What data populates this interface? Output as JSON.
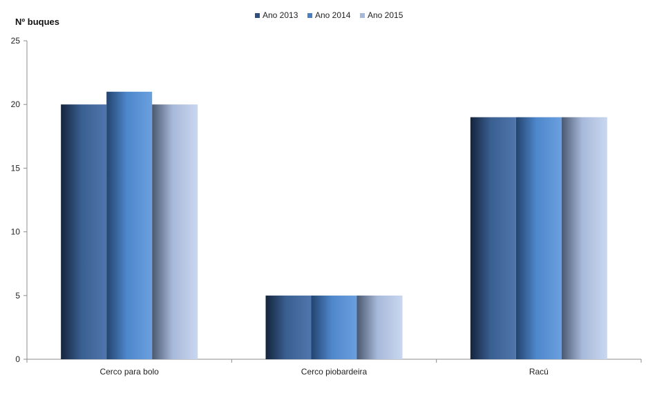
{
  "chart_data": {
    "type": "bar",
    "title": "",
    "xlabel": "",
    "ylabel": "Nº  buques",
    "categories": [
      "Cerco para bolo",
      "Cerco piobardeira",
      "Racú"
    ],
    "series": [
      {
        "name": "Ano 2013",
        "values": [
          20,
          5,
          19
        ],
        "color": "#2f4f7f"
      },
      {
        "name": "Ano 2014",
        "values": [
          21,
          5,
          19
        ],
        "color": "#4a7fc1"
      },
      {
        "name": "Ano 2015",
        "values": [
          20,
          5,
          19
        ],
        "color": "#a6b8db"
      }
    ],
    "ylim": [
      0,
      25
    ],
    "yticks": [
      0,
      5,
      10,
      15,
      20,
      25
    ],
    "grid": false,
    "legend_position": "top-center"
  }
}
